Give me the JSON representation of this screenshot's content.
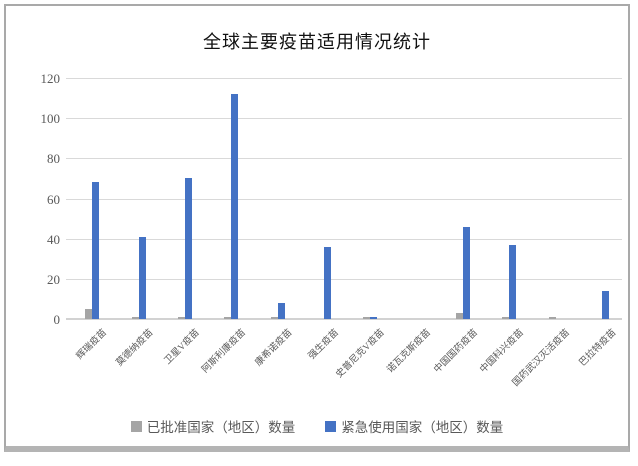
{
  "chart_data": {
    "type": "bar",
    "title": "全球主要疫苗适用情况统计",
    "categories": [
      "辉瑞疫苗",
      "莫德纳疫苗",
      "卫星V疫苗",
      "阿斯利康疫苗",
      "康希诺疫苗",
      "强生疫苗",
      "史普尼克V疫苗",
      "诺瓦克斯疫苗",
      "中国国药疫苗",
      "中国科兴疫苗",
      "国药武汉灭活疫苗",
      "巴拉特疫苗"
    ],
    "series": [
      {
        "name": "已批准国家（地区）数量",
        "color": "#a5a5a5",
        "values": [
          5,
          1,
          1,
          1,
          1,
          0,
          1,
          0,
          3,
          1,
          1,
          0
        ]
      },
      {
        "name": "紧急使用国家（地区）数量",
        "color": "#4472c4",
        "values": [
          68,
          41,
          70,
          112,
          8,
          36,
          1,
          0,
          46,
          37,
          0,
          14
        ]
      }
    ],
    "xlabel": "",
    "ylabel": "",
    "ylim": [
      0,
      120
    ],
    "yticks": [
      0,
      20,
      40,
      60,
      80,
      100,
      120
    ],
    "grid": true,
    "legend_position": "bottom"
  },
  "colors": {
    "grid": "#d9d9d9",
    "axis_text": "#595959",
    "title_text": "#111111",
    "frame_border": "#a9a9a9",
    "background": "#ffffff",
    "series_approved": "#a5a5a5",
    "series_emergency": "#4472c4"
  }
}
